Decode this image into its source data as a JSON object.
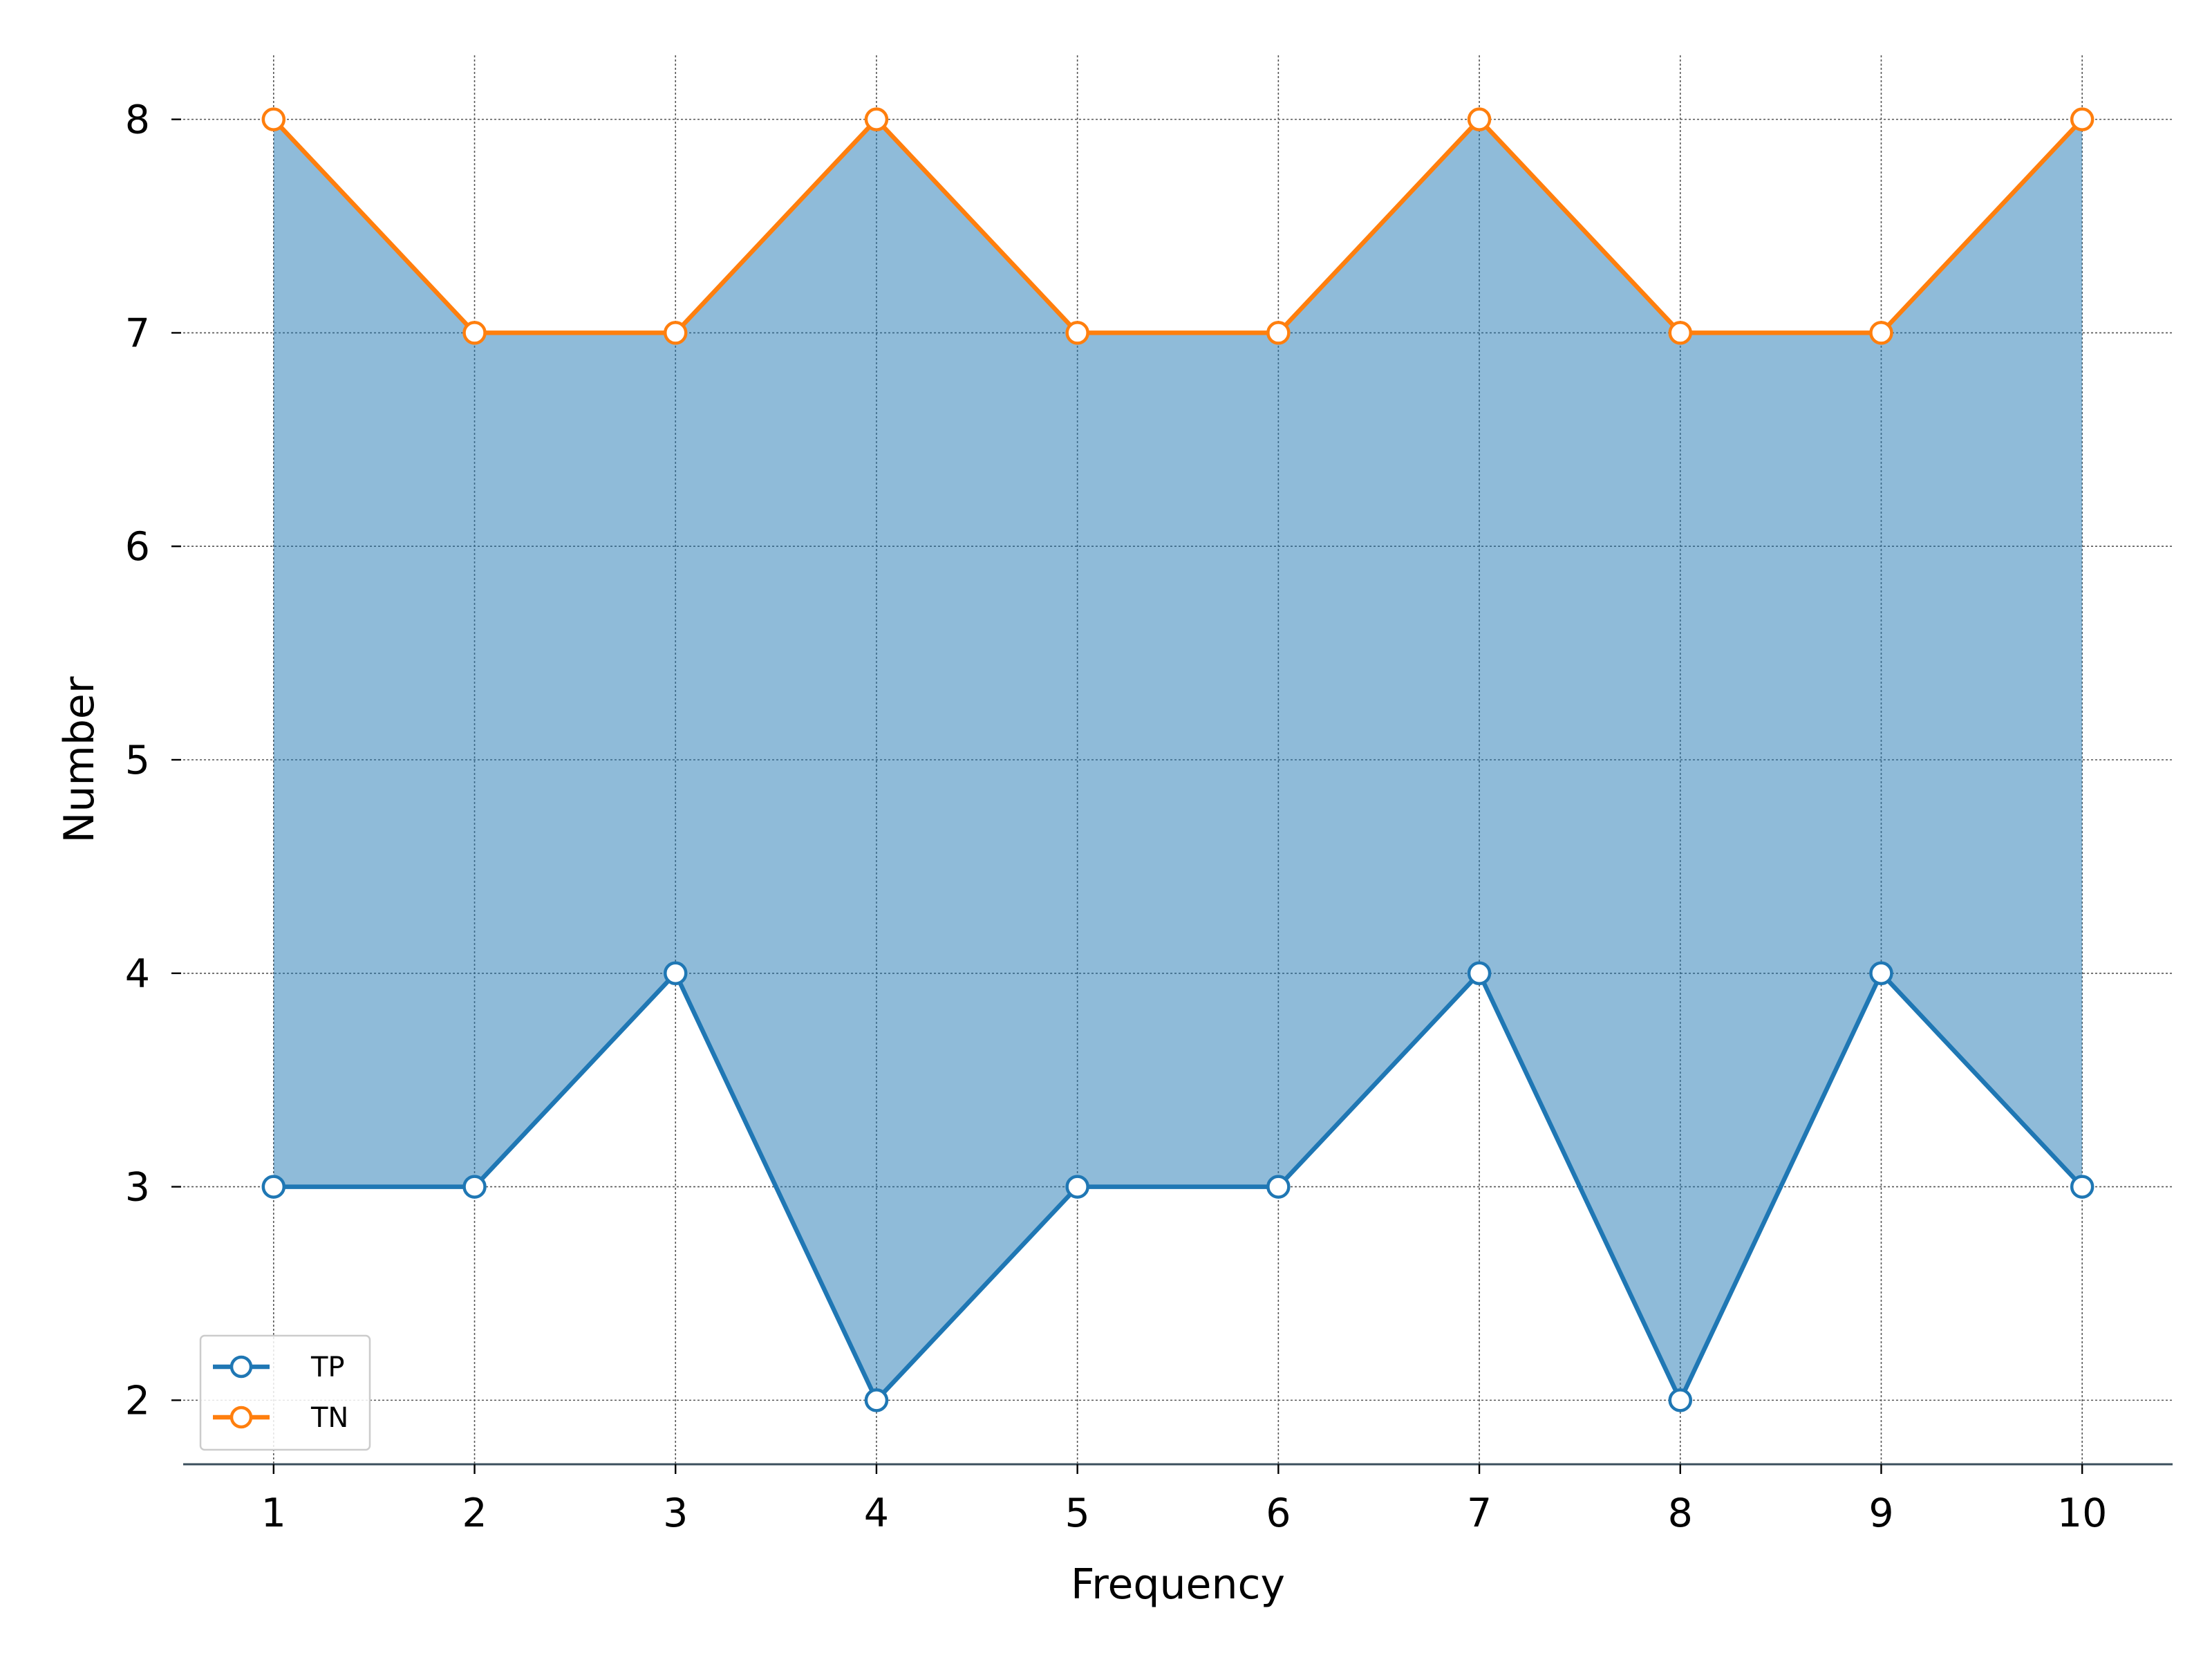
{
  "chart_data": {
    "type": "line",
    "title": "",
    "xlabel": "Frequency",
    "ylabel": "Number",
    "x": [
      1,
      2,
      3,
      4,
      5,
      6,
      7,
      8,
      9,
      10
    ],
    "x_ticks": [
      "1",
      "2",
      "3",
      "4",
      "5",
      "6",
      "7",
      "8",
      "9",
      "10"
    ],
    "y_ticks": [
      "2",
      "3",
      "4",
      "5",
      "6",
      "7",
      "8"
    ],
    "xlim": [
      0.55,
      10.45
    ],
    "ylim": [
      1.7,
      8.3
    ],
    "grid": true,
    "fill_between_series": true,
    "legend_position": "lower-left",
    "series": [
      {
        "name": "TP",
        "color": "#1f77b4",
        "values": [
          3,
          3,
          4,
          2,
          3,
          3,
          4,
          2,
          4,
          3
        ]
      },
      {
        "name": "TN",
        "color": "#ff7f0e",
        "values": [
          8,
          7,
          7,
          8,
          7,
          7,
          8,
          7,
          7,
          8
        ]
      }
    ],
    "fill_color": "#1f77b4"
  }
}
